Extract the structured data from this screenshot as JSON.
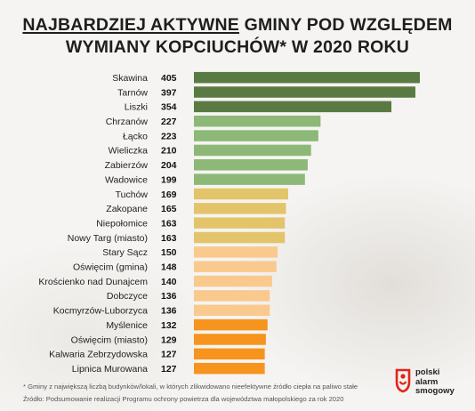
{
  "title": {
    "highlight": "NAJBARDZIEJ AKTYWNE",
    "rest": " GMINY POD WZGLĘDEM",
    "line2": "WYMIANY KOPCIUCHÓW* W 2020 ROKU"
  },
  "chart_data": {
    "type": "bar",
    "orientation": "horizontal",
    "title": "NAJBARDZIEJ AKTYWNE GMINY POD WZGLĘDEM WYMIANY KOPCIUCHÓW* W 2020 ROKU",
    "xlim": [
      0,
      405
    ],
    "grid": false,
    "categories": [
      "Skawina",
      "Tarnów",
      "Liszki",
      "Chrzanów",
      "Łącko",
      "Wieliczka",
      "Zabierzów",
      "Wadowice",
      "Tuchów",
      "Zakopane",
      "Niepołomice",
      "Nowy Targ (miasto)",
      "Stary Sącz",
      "Oświęcim (gmina)",
      "Krościenko nad Dunajcem",
      "Dobczyce",
      "Kocmyrzów-Luborzyca",
      "Myślenice",
      "Oświęcim (miasto)",
      "Kalwaria Zebrzydowska",
      "Lipnica Murowana"
    ],
    "values": [
      405,
      397,
      354,
      227,
      223,
      210,
      204,
      199,
      169,
      165,
      163,
      163,
      150,
      148,
      140,
      136,
      136,
      132,
      129,
      127,
      127
    ],
    "colors": [
      "#5a7a43",
      "#5a7a43",
      "#5a7a43",
      "#8db878",
      "#8db878",
      "#8db878",
      "#8db878",
      "#8db878",
      "#e4c46a",
      "#e4c46a",
      "#e4c46a",
      "#e4c46a",
      "#f9c98d",
      "#f9c98d",
      "#f9c98d",
      "#f9c98d",
      "#f9c98d",
      "#f6941d",
      "#f6941d",
      "#f6941d",
      "#f6941d"
    ]
  },
  "footnotes": [
    "* Gminy z największą liczbą budynków/lokali, w których zlikwidowano nieefektywne źródło ciepła na paliwo stałe",
    "Źródło: Podsumowanie realizacji Programu ochrony powietrza dla województwa małopolskiego za rok 2020"
  ],
  "logo": {
    "lines": [
      "polski",
      "alarm",
      "smogowy"
    ],
    "color": "#e2231a"
  }
}
